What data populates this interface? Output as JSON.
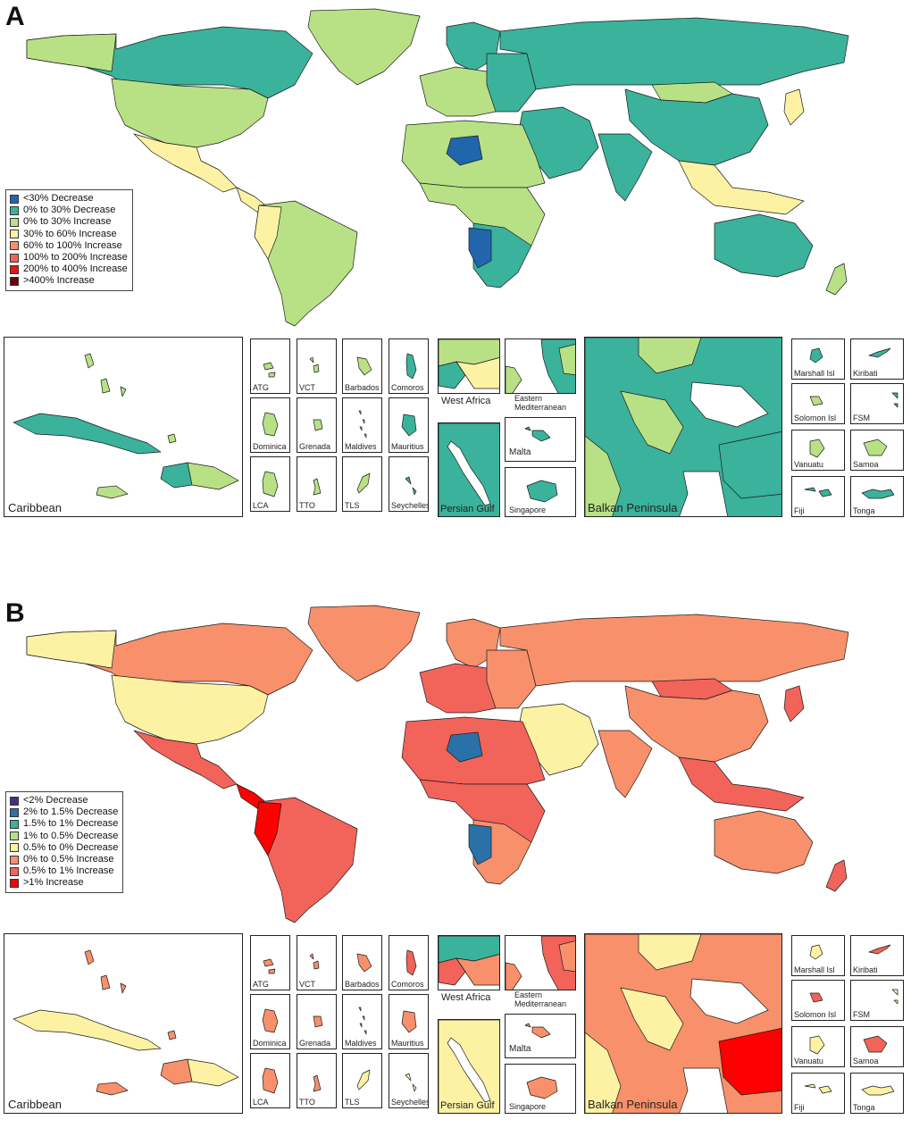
{
  "panels": [
    {
      "letter": "A",
      "legend": [
        {
          "label": "<30% Decrease",
          "color": "#2166ac"
        },
        {
          "label": "0% to 30% Decrease",
          "color": "#3bb29b"
        },
        {
          "label": "0% to 30% Increase",
          "color": "#b8e186"
        },
        {
          "label": "30% to 60% Increase",
          "color": "#fdf2a4"
        },
        {
          "label": "60% to 100% Increase",
          "color": "#f7906b"
        },
        {
          "label": "100% to 200% Increase",
          "color": "#f2635a"
        },
        {
          "label": "200% to 400% Increase",
          "color": "#e9150f"
        },
        {
          "label": ">400% Increase",
          "color": "#67000d"
        }
      ],
      "palette": {
        "na": "#3bb29b",
        "us": "#b8e186",
        "mex": "#fdf2a4",
        "greenland": "#b8e186",
        "sa": "#b8e186",
        "sa2": "#fdf2a4",
        "eu": "#3bb29b",
        "eu2": "#b8e186",
        "russia": "#3bb29b",
        "africa": "#b8e186",
        "africa2": "#3bb29b",
        "africa3": "#2166ac",
        "mideast": "#3bb29b",
        "india": "#3bb29b",
        "china": "#3bb29b",
        "mongolia": "#b8e186",
        "sea": "#fdf2a4",
        "australia": "#3bb29b",
        "nz": "#b8e186"
      },
      "insets": {
        "caribbean": {
          "label": "Caribbean",
          "cuba": "#3bb29b",
          "hispaniola_w": "#3bb29b",
          "hispaniola_e": "#b8e186",
          "jamaica": "#b8e186",
          "small": "#b8e186"
        },
        "islands": [
          {
            "label": "ATG",
            "color": "#b8e186"
          },
          {
            "label": "VCT",
            "color": "#b8e186"
          },
          {
            "label": "Barbados",
            "color": "#b8e186"
          },
          {
            "label": "Comoros",
            "color": "#3bb29b"
          },
          {
            "label": "Dominica",
            "color": "#b8e186"
          },
          {
            "label": "Grenada",
            "color": "#b8e186"
          },
          {
            "label": "Maldives",
            "color": "#b8e186"
          },
          {
            "label": "Mauritius",
            "color": "#3bb29b"
          },
          {
            "label": "LCA",
            "color": "#b8e186"
          },
          {
            "label": "TTO",
            "color": "#b8e186"
          },
          {
            "label": "TLS",
            "color": "#b8e186"
          },
          {
            "label": "Seychelles",
            "color": "#3bb29b"
          }
        ],
        "west_africa": {
          "label": "West Africa",
          "c1": "#3bb29b",
          "c2": "#b8e186",
          "c3": "#fdf2a4"
        },
        "east_med": {
          "label": "Eastern Mediterranean",
          "c1": "#3bb29b",
          "c2": "#b8e186"
        },
        "persian_gulf": {
          "label": "Persian Gulf",
          "c1": "#3bb29b"
        },
        "malta": {
          "label": "Malta",
          "color": "#3bb29b"
        },
        "singapore": {
          "label": "Singapore",
          "color": "#3bb29b"
        },
        "balkan": {
          "label": "Balkan Peninsula",
          "c1": "#3bb29b",
          "c2": "#b8e186",
          "c3": "#3bb29b"
        },
        "pacific": [
          {
            "label": "Marshall Isl",
            "color": "#3bb29b"
          },
          {
            "label": "Kiribati",
            "color": "#3bb29b"
          },
          {
            "label": "Solomon Isl",
            "color": "#b8e186"
          },
          {
            "label": "FSM",
            "color": "#3bb29b"
          },
          {
            "label": "Vanuatu",
            "color": "#b8e186"
          },
          {
            "label": "Samoa",
            "color": "#b8e186"
          },
          {
            "label": "Fiji",
            "color": "#3bb29b"
          },
          {
            "label": "Tonga",
            "color": "#3bb29b"
          }
        ]
      }
    },
    {
      "letter": "B",
      "legend": [
        {
          "label": "<2% Decrease",
          "color": "#4b2c85"
        },
        {
          "label": "2% to 1.5% Decrease",
          "color": "#2a71a8"
        },
        {
          "label": "1.5% to 1% Decrease",
          "color": "#3bb29b"
        },
        {
          "label": "1% to 0.5% Decrease",
          "color": "#b8e186"
        },
        {
          "label": "0.5% to 0% Decrease",
          "color": "#fdf2a4"
        },
        {
          "label": "0% to 0.5% Increase",
          "color": "#f7906b"
        },
        {
          "label": "0.5% to 1% Increase",
          "color": "#f2635a"
        },
        {
          "label": ">1% Increase",
          "color": "#ff0000"
        }
      ],
      "palette": {
        "na": "#f7906b",
        "us": "#fdf2a4",
        "mex": "#f2635a",
        "greenland": "#f7906b",
        "sa": "#f2635a",
        "sa2": "#ff0000",
        "eu": "#f7906b",
        "eu2": "#f2635a",
        "russia": "#f7906b",
        "africa": "#f2635a",
        "africa2": "#f7906b",
        "africa3": "#2a71a8",
        "mideast": "#fdf2a4",
        "india": "#f7906b",
        "china": "#f7906b",
        "mongolia": "#f2635a",
        "sea": "#f2635a",
        "australia": "#f7906b",
        "nz": "#f2635a"
      },
      "insets": {
        "caribbean": {
          "label": "Caribbean",
          "cuba": "#fdf2a4",
          "hispaniola_w": "#f7906b",
          "hispaniola_e": "#fdf2a4",
          "jamaica": "#f7906b",
          "small": "#f7906b"
        },
        "islands": [
          {
            "label": "ATG",
            "color": "#f7906b"
          },
          {
            "label": "VCT",
            "color": "#f7906b"
          },
          {
            "label": "Barbados",
            "color": "#f7906b"
          },
          {
            "label": "Comoros",
            "color": "#f2635a"
          },
          {
            "label": "Dominica",
            "color": "#f7906b"
          },
          {
            "label": "Grenada",
            "color": "#f7906b"
          },
          {
            "label": "Maldives",
            "color": "#f7906b"
          },
          {
            "label": "Mauritius",
            "color": "#f7906b"
          },
          {
            "label": "LCA",
            "color": "#f7906b"
          },
          {
            "label": "TTO",
            "color": "#f7906b"
          },
          {
            "label": "TLS",
            "color": "#fdf2a4"
          },
          {
            "label": "Seychelles",
            "color": "#fdf2a4"
          }
        ],
        "west_africa": {
          "label": "West Africa",
          "c1": "#f2635a",
          "c2": "#3bb29b",
          "c3": "#f7906b"
        },
        "east_med": {
          "label": "Eastern Mediterranean",
          "c1": "#f2635a",
          "c2": "#f7906b"
        },
        "persian_gulf": {
          "label": "Persian Gulf",
          "c1": "#fdf2a4"
        },
        "malta": {
          "label": "Malta",
          "color": "#f7906b"
        },
        "singapore": {
          "label": "Singapore",
          "color": "#f7906b"
        },
        "balkan": {
          "label": "Balkan Peninsula",
          "c1": "#f7906b",
          "c2": "#fdf2a4",
          "c3": "#ff0000"
        },
        "pacific": [
          {
            "label": "Marshall Isl",
            "color": "#fdf2a4"
          },
          {
            "label": "Kiribati",
            "color": "#f2635a"
          },
          {
            "label": "Solomon Isl",
            "color": "#f2635a"
          },
          {
            "label": "FSM",
            "color": "#fdf2a4"
          },
          {
            "label": "Vanuatu",
            "color": "#fdf2a4"
          },
          {
            "label": "Samoa",
            "color": "#f2635a"
          },
          {
            "label": "Fiji",
            "color": "#fdf2a4"
          },
          {
            "label": "Tonga",
            "color": "#fdf2a4"
          }
        ]
      }
    }
  ]
}
